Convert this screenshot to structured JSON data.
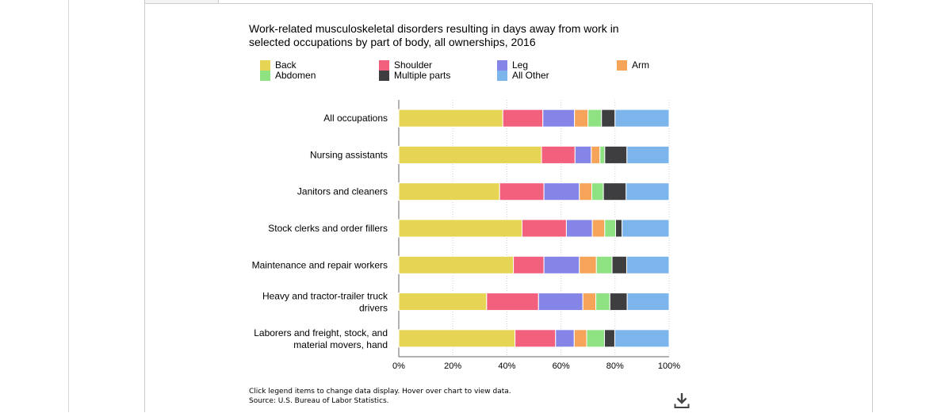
{
  "footnotes": {
    "line1": "Click legend items to change data display. Hover over chart to view data.",
    "line2": "Source: U.S. Bureau of Labor Statistics."
  },
  "download_icon": "download-icon",
  "chart_data": {
    "type": "bar",
    "orientation": "horizontal",
    "stacked": "percent",
    "title": "Work-related musculoskeletal disorders resulting in days away from work in selected occupations by part of body, all ownerships, 2016",
    "categories": [
      "All occupations",
      "Nursing assistants",
      "Janitors and cleaners",
      "Stock clerks and order fillers",
      "Maintenance and repair workers",
      "Heavy and tractor-trailer truck drivers",
      "Laborers and freight, stock, and material movers, hand"
    ],
    "series": [
      {
        "name": "Back",
        "color": "#e6d454",
        "values": [
          38.5,
          52.8,
          37.3,
          45.6,
          42.4,
          32.5,
          43.0
        ]
      },
      {
        "name": "Shoulder",
        "color": "#f2607e",
        "values": [
          14.8,
          12.4,
          16.4,
          16.4,
          11.3,
          19.2,
          15.0
        ]
      },
      {
        "name": "Leg",
        "color": "#8585e8",
        "values": [
          11.7,
          6.0,
          13.1,
          9.6,
          13.1,
          16.4,
          6.9
        ]
      },
      {
        "name": "Arm",
        "color": "#f5a45a",
        "values": [
          5.0,
          3.2,
          4.6,
          4.6,
          6.3,
          4.8,
          4.6
        ]
      },
      {
        "name": "Abdomen",
        "color": "#8ee282",
        "values": [
          5.0,
          1.8,
          4.3,
          4.0,
          5.8,
          5.2,
          6.6
        ]
      },
      {
        "name": "Multiple parts",
        "color": "#3e3e40",
        "values": [
          5.0,
          8.2,
          8.4,
          2.4,
          5.4,
          6.4,
          3.8
        ]
      },
      {
        "name": "All Other",
        "color": "#7cb4ec",
        "values": [
          20.0,
          15.6,
          15.9,
          17.4,
          15.7,
          15.5,
          20.1
        ]
      }
    ],
    "x_ticks": [
      "0%",
      "20%",
      "40%",
      "60%",
      "80%",
      "100%"
    ],
    "xlim": [
      0,
      100
    ],
    "grid": "vertical dotted",
    "legend_position": "top"
  }
}
